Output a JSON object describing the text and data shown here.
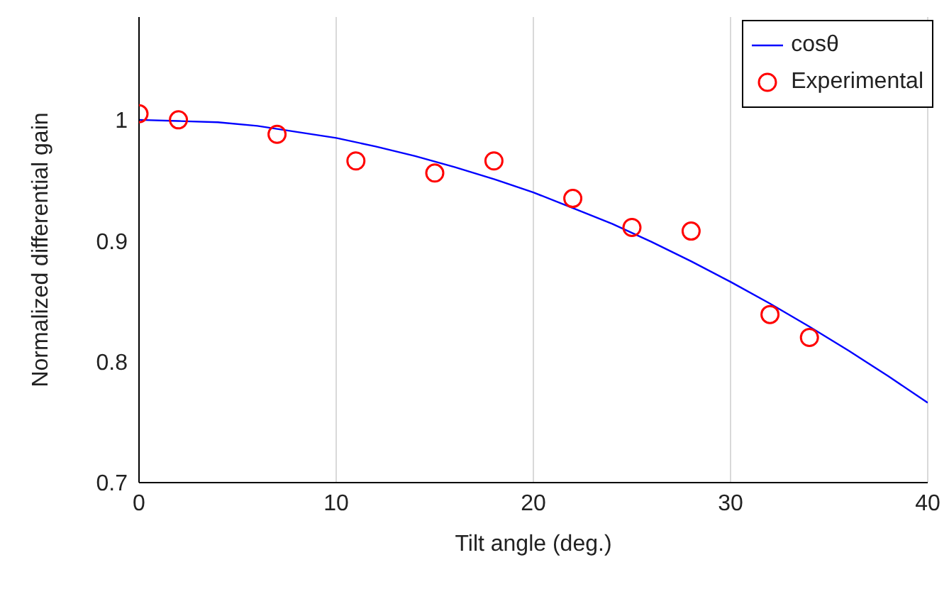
{
  "chart_data": {
    "type": "scatter",
    "xlabel": "Tilt angle (deg.)",
    "ylabel": "Normalized differential gain",
    "xlim": [
      0,
      40
    ],
    "xticks": [
      0,
      10,
      20,
      30,
      40
    ],
    "ylim": [
      0.7,
      1.085
    ],
    "yticks": [
      0.7,
      0.8,
      0.9,
      1
    ],
    "grid": "x",
    "legend": "top right",
    "series": [
      {
        "name": "cosθ",
        "type": "line",
        "color": "#0000ff",
        "marker": "none",
        "x": [
          0,
          2,
          4,
          6,
          8,
          10,
          12,
          14,
          16,
          18,
          20,
          22,
          24,
          26,
          28,
          30,
          32,
          34,
          36,
          38,
          40
        ],
        "values": [
          1,
          0.999,
          0.998,
          0.995,
          0.99,
          0.985,
          0.978,
          0.97,
          0.961,
          0.951,
          0.94,
          0.927,
          0.914,
          0.899,
          0.883,
          0.866,
          0.848,
          0.829,
          0.809,
          0.788,
          0.766
        ]
      },
      {
        "name": "Experimental",
        "color": "#ff0000",
        "marker": "circle",
        "x": [
          0,
          2,
          7,
          11,
          15,
          18,
          22,
          25,
          28,
          32,
          34
        ],
        "values": [
          1.005,
          1.0,
          0.988,
          0.966,
          0.956,
          0.966,
          0.935,
          0.911,
          0.908,
          0.839,
          0.82
        ]
      }
    ]
  }
}
